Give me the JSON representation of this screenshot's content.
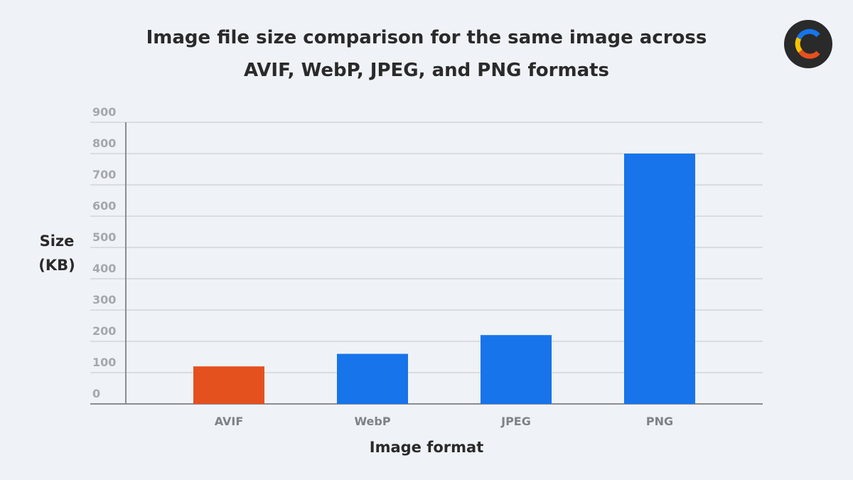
{
  "chart_data": {
    "type": "bar",
    "title": "Image file size comparison for the same image across AVIF, WebP, JPEG, and PNG formats",
    "y_label": "Size (KB)",
    "x_label": "Image format",
    "categories": [
      "AVIF",
      "WebP",
      "JPEG",
      "PNG"
    ],
    "values": [
      120,
      160,
      220,
      800
    ],
    "colors": [
      "#e4511f",
      "#1774ea",
      "#1774ea",
      "#1774ea"
    ],
    "ylim": [
      0,
      900
    ],
    "yticks": [
      0,
      100,
      200,
      300,
      400,
      500,
      600,
      700,
      800,
      900
    ],
    "grid": true
  }
}
